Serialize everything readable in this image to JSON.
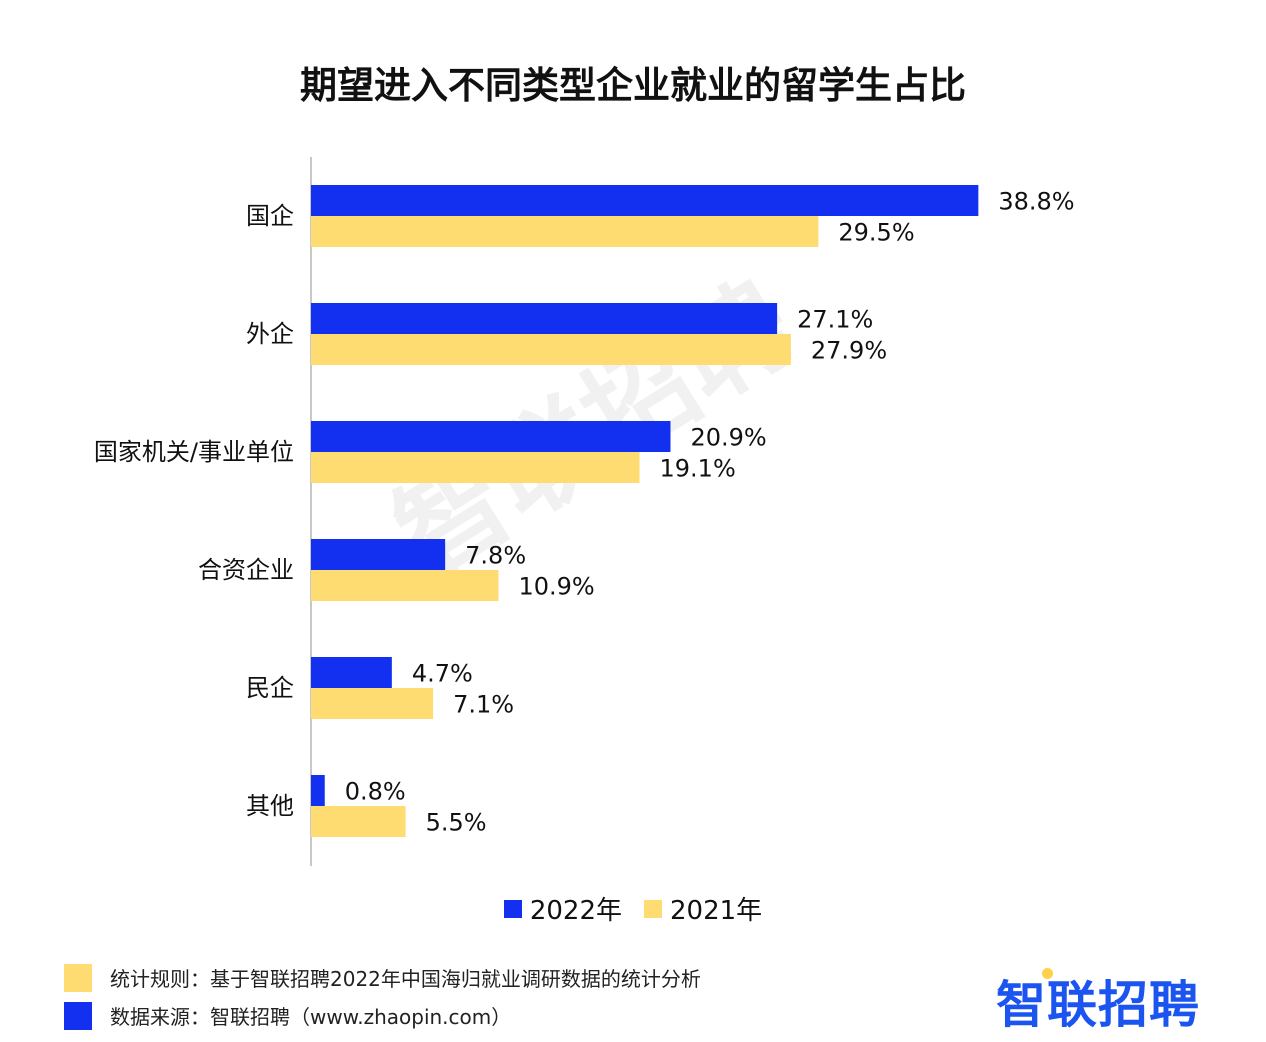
{
  "title": "期望进入不同类型企业就业的留学生占比",
  "watermark": "智联招聘",
  "colors": {
    "s2022": "#1330f0",
    "s2021": "#ffdc72",
    "axis": "#c8c8c8",
    "brand": "#1c54f0",
    "brand_dot": "#ffd04a"
  },
  "chart_data": {
    "type": "bar",
    "orientation": "horizontal",
    "categories": [
      "国企",
      "外企",
      "国家机关/事业单位",
      "合资企业",
      "民企",
      "其他"
    ],
    "series": [
      {
        "name": "2022年",
        "values": [
          38.8,
          27.1,
          20.9,
          7.8,
          4.7,
          0.8
        ],
        "labels": [
          "38.8%",
          "27.1%",
          "20.9%",
          "7.8%",
          "4.7%",
          "0.8%"
        ]
      },
      {
        "name": "2021年",
        "values": [
          29.5,
          27.9,
          19.1,
          10.9,
          7.1,
          5.5
        ],
        "labels": [
          "29.5%",
          "27.9%",
          "19.1%",
          "10.9%",
          "7.1%",
          "5.5%"
        ]
      }
    ],
    "legend": "bottom-center",
    "grid": false
  },
  "footer": {
    "rule": "统计规则：基于智联招聘2022年中国海归就业调研数据的统计分析",
    "source": "数据来源：智联招聘（www.zhaopin.com）"
  },
  "brand": "智联招聘"
}
